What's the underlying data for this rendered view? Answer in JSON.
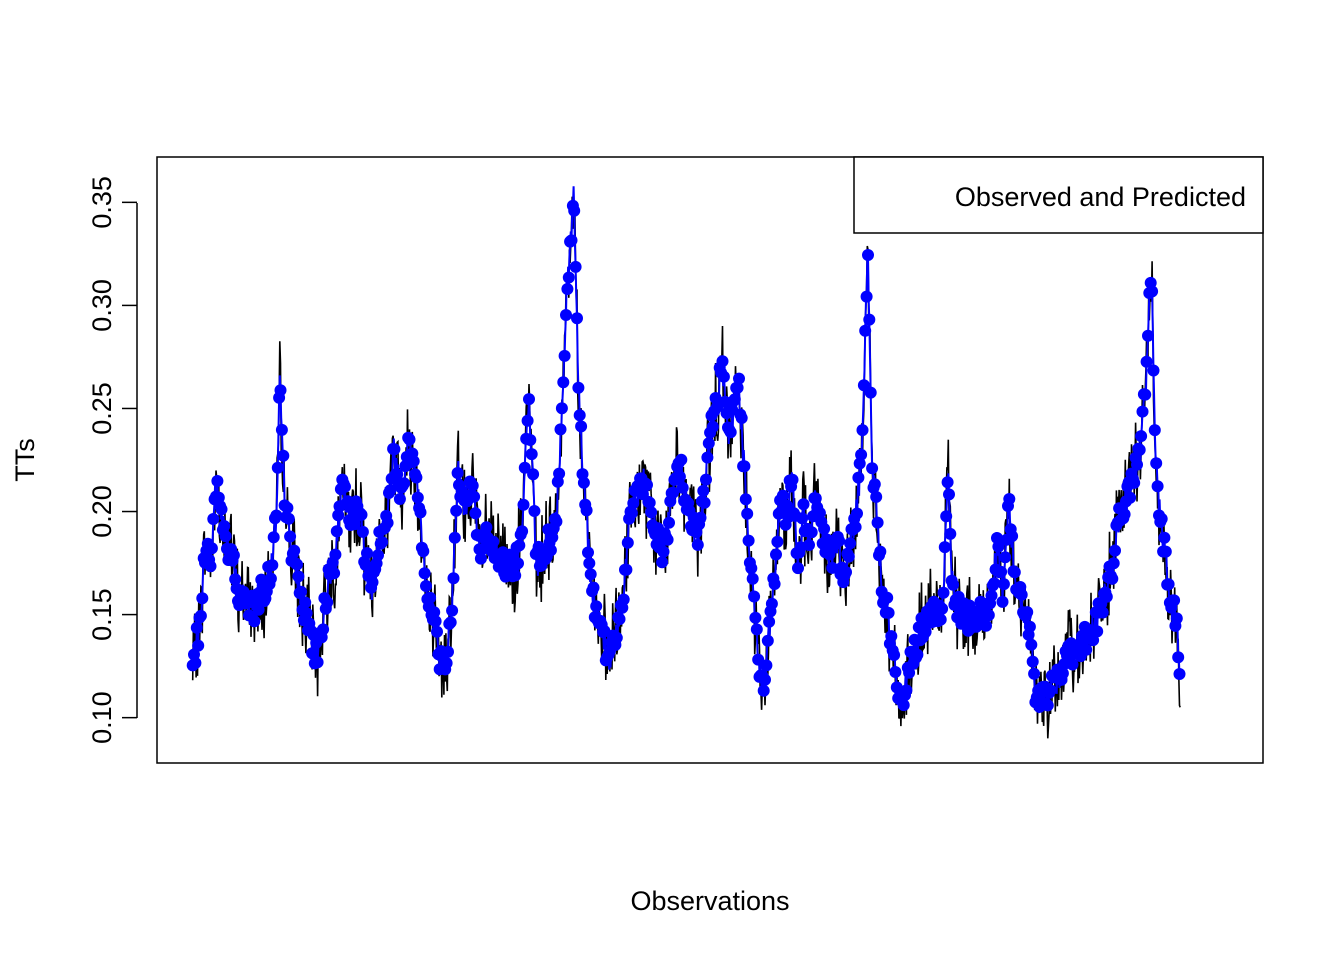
{
  "chart_data": {
    "type": "line",
    "title": "",
    "xlabel": "Observations",
    "ylabel": "TTs",
    "ylim": [
      0.078,
      0.372
    ],
    "xlim": [
      -50,
      1500
    ],
    "yticks": [
      0.1,
      0.15,
      0.2,
      0.25,
      0.3,
      0.35
    ],
    "ytick_labels": [
      "0.10",
      "0.15",
      "0.20",
      "0.25",
      "0.30",
      "0.35"
    ],
    "show_x_axis_ticks": false,
    "grid": false,
    "legend": {
      "text": "Observed and Predicted",
      "position": "top-right"
    },
    "n_observations": 1440,
    "anchors": [
      [
        0,
        0.124
      ],
      [
        10,
        0.146
      ],
      [
        18,
        0.185
      ],
      [
        25,
        0.172
      ],
      [
        32,
        0.214
      ],
      [
        40,
        0.198
      ],
      [
        48,
        0.186
      ],
      [
        56,
        0.176
      ],
      [
        64,
        0.16
      ],
      [
        74,
        0.158
      ],
      [
        86,
        0.152
      ],
      [
        96,
        0.16
      ],
      [
        108,
        0.168
      ],
      [
        118,
        0.2
      ],
      [
        122,
        0.262
      ],
      [
        128,
        0.212
      ],
      [
        136,
        0.188
      ],
      [
        144,
        0.172
      ],
      [
        154,
        0.155
      ],
      [
        164,
        0.143
      ],
      [
        172,
        0.128
      ],
      [
        180,
        0.142
      ],
      [
        190,
        0.165
      ],
      [
        200,
        0.178
      ],
      [
        210,
        0.212
      ],
      [
        220,
        0.195
      ],
      [
        232,
        0.205
      ],
      [
        242,
        0.178
      ],
      [
        252,
        0.162
      ],
      [
        262,
        0.19
      ],
      [
        272,
        0.196
      ],
      [
        282,
        0.23
      ],
      [
        292,
        0.21
      ],
      [
        302,
        0.232
      ],
      [
        312,
        0.222
      ],
      [
        320,
        0.195
      ],
      [
        328,
        0.158
      ],
      [
        338,
        0.148
      ],
      [
        346,
        0.125
      ],
      [
        356,
        0.13
      ],
      [
        364,
        0.16
      ],
      [
        372,
        0.22
      ],
      [
        382,
        0.2
      ],
      [
        392,
        0.218
      ],
      [
        402,
        0.18
      ],
      [
        412,
        0.188
      ],
      [
        422,
        0.182
      ],
      [
        432,
        0.178
      ],
      [
        442,
        0.172
      ],
      [
        452,
        0.175
      ],
      [
        462,
        0.188
      ],
      [
        470,
        0.255
      ],
      [
        476,
        0.222
      ],
      [
        482,
        0.174
      ],
      [
        490,
        0.18
      ],
      [
        500,
        0.186
      ],
      [
        510,
        0.195
      ],
      [
        518,
        0.255
      ],
      [
        524,
        0.305
      ],
      [
        530,
        0.332
      ],
      [
        534,
        0.358
      ],
      [
        540,
        0.27
      ],
      [
        546,
        0.225
      ],
      [
        552,
        0.198
      ],
      [
        558,
        0.165
      ],
      [
        566,
        0.15
      ],
      [
        574,
        0.14
      ],
      [
        582,
        0.128
      ],
      [
        590,
        0.135
      ],
      [
        598,
        0.145
      ],
      [
        606,
        0.17
      ],
      [
        614,
        0.2
      ],
      [
        622,
        0.21
      ],
      [
        632,
        0.215
      ],
      [
        640,
        0.2
      ],
      [
        650,
        0.19
      ],
      [
        660,
        0.178
      ],
      [
        670,
        0.205
      ],
      [
        680,
        0.228
      ],
      [
        688,
        0.212
      ],
      [
        698,
        0.198
      ],
      [
        708,
        0.185
      ],
      [
        716,
        0.205
      ],
      [
        726,
        0.24
      ],
      [
        734,
        0.25
      ],
      [
        742,
        0.272
      ],
      [
        750,
        0.235
      ],
      [
        758,
        0.25
      ],
      [
        766,
        0.26
      ],
      [
        772,
        0.225
      ],
      [
        780,
        0.185
      ],
      [
        788,
        0.15
      ],
      [
        794,
        0.125
      ],
      [
        800,
        0.112
      ],
      [
        808,
        0.14
      ],
      [
        816,
        0.17
      ],
      [
        824,
        0.205
      ],
      [
        832,
        0.195
      ],
      [
        840,
        0.22
      ],
      [
        848,
        0.175
      ],
      [
        856,
        0.2
      ],
      [
        864,
        0.182
      ],
      [
        872,
        0.205
      ],
      [
        880,
        0.195
      ],
      [
        888,
        0.182
      ],
      [
        896,
        0.178
      ],
      [
        904,
        0.186
      ],
      [
        912,
        0.165
      ],
      [
        920,
        0.18
      ],
      [
        928,
        0.195
      ],
      [
        936,
        0.22
      ],
      [
        942,
        0.278
      ],
      [
        946,
        0.328
      ],
      [
        952,
        0.225
      ],
      [
        958,
        0.2
      ],
      [
        966,
        0.165
      ],
      [
        974,
        0.15
      ],
      [
        982,
        0.128
      ],
      [
        988,
        0.112
      ],
      [
        996,
        0.112
      ],
      [
        1006,
        0.125
      ],
      [
        1016,
        0.138
      ],
      [
        1026,
        0.145
      ],
      [
        1036,
        0.15
      ],
      [
        1046,
        0.148
      ],
      [
        1052,
        0.16
      ],
      [
        1058,
        0.22
      ],
      [
        1064,
        0.165
      ],
      [
        1074,
        0.152
      ],
      [
        1084,
        0.148
      ],
      [
        1094,
        0.15
      ],
      [
        1104,
        0.15
      ],
      [
        1112,
        0.145
      ],
      [
        1120,
        0.165
      ],
      [
        1128,
        0.182
      ],
      [
        1136,
        0.16
      ],
      [
        1144,
        0.205
      ],
      [
        1150,
        0.175
      ],
      [
        1158,
        0.16
      ],
      [
        1166,
        0.15
      ],
      [
        1174,
        0.14
      ],
      [
        1182,
        0.11
      ],
      [
        1190,
        0.108
      ],
      [
        1198,
        0.112
      ],
      [
        1208,
        0.116
      ],
      [
        1218,
        0.122
      ],
      [
        1228,
        0.13
      ],
      [
        1238,
        0.134
      ],
      [
        1248,
        0.138
      ],
      [
        1258,
        0.142
      ],
      [
        1268,
        0.148
      ],
      [
        1278,
        0.158
      ],
      [
        1288,
        0.172
      ],
      [
        1298,
        0.195
      ],
      [
        1306,
        0.205
      ],
      [
        1314,
        0.212
      ],
      [
        1322,
        0.222
      ],
      [
        1330,
        0.24
      ],
      [
        1336,
        0.262
      ],
      [
        1340,
        0.296
      ],
      [
        1344,
        0.316
      ],
      [
        1348,
        0.24
      ],
      [
        1354,
        0.205
      ],
      [
        1362,
        0.18
      ],
      [
        1370,
        0.155
      ],
      [
        1378,
        0.148
      ],
      [
        1384,
        0.122
      ]
    ]
  }
}
